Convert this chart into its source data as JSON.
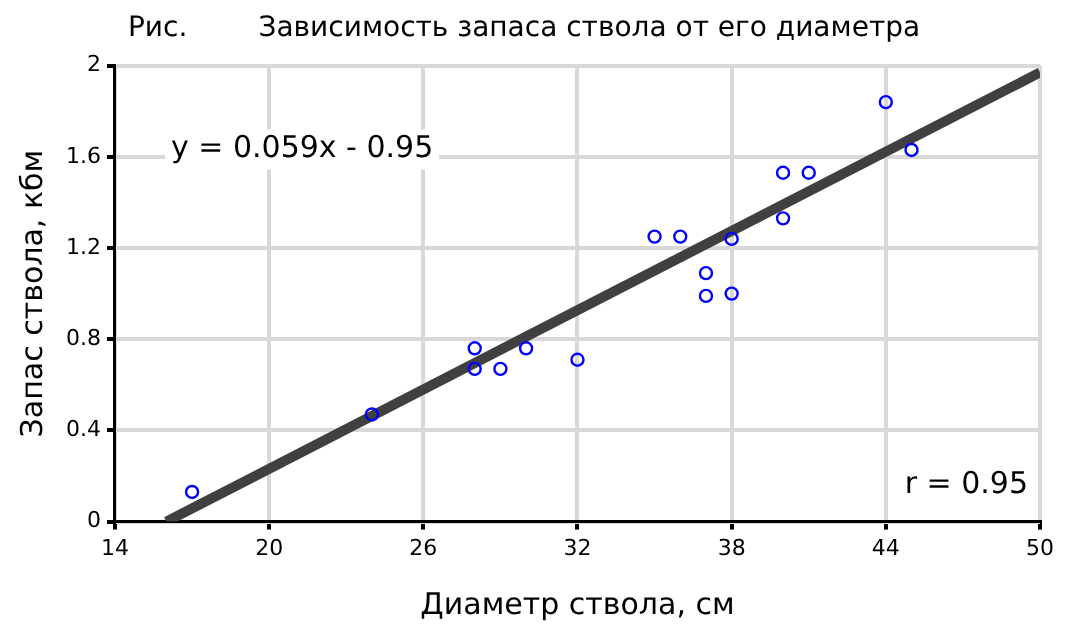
{
  "chart_data": {
    "type": "scatter",
    "title": "Рис.        Зависимость запаса ствола от его диаметра",
    "xlabel": "Диаметр ствола, см",
    "ylabel": "Запас ствола, кбм",
    "xlim": [
      14,
      50
    ],
    "xticks": [
      14,
      20,
      26,
      32,
      38,
      44,
      50
    ],
    "ylim": [
      0,
      2
    ],
    "yticks": [
      0,
      0.4,
      0.8,
      1.2,
      1.6,
      2
    ],
    "grid": true,
    "legend": false,
    "annotations": [
      "y = 0.059x - 0.95",
      "r = 0.95"
    ],
    "series": [
      {
        "marker": "circle",
        "color": "#0000ff",
        "x": [
          17,
          24,
          28,
          28,
          29,
          30,
          32,
          35,
          36,
          37,
          37,
          38,
          38,
          40,
          40,
          41,
          44,
          45
        ],
        "values": [
          0.13,
          0.47,
          0.76,
          0.67,
          0.67,
          0.76,
          0.71,
          1.25,
          1.25,
          1.09,
          0.99,
          1.0,
          1.24,
          1.53,
          1.33,
          1.53,
          1.84,
          1.63
        ]
      },
      {
        "type": "line",
        "marker": "none",
        "color": "#404040",
        "x": [
          16,
          50
        ],
        "values": [
          0,
          1.97
        ]
      }
    ]
  }
}
